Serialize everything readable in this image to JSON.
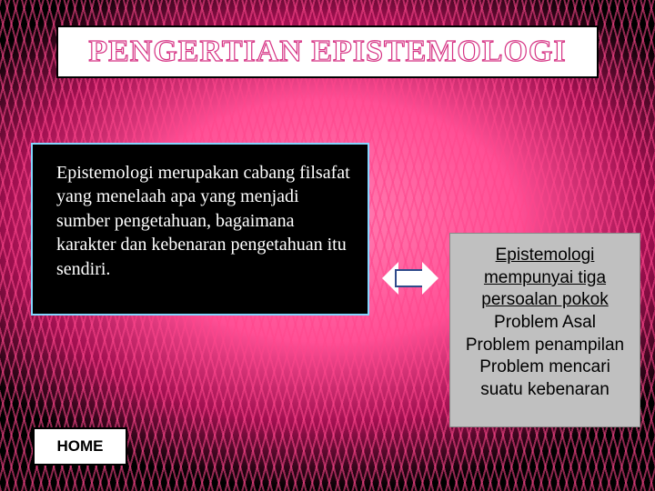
{
  "title": "PENGERTIAN EPISTEMOLOGI",
  "leftPanel": {
    "text": "Epistemologi merupakan cabang filsafat yang menelaah apa yang menjadi sumber pengetahuan, bagaimana karakter dan kebenaran pengetahuan itu sendiri."
  },
  "rightPanel": {
    "l1": "Epistemologi",
    "l2": "mempunyai tiga",
    "l3": "persoalan pokok",
    "l4": "Problem Asal",
    "l5": "Problem penampilan",
    "l6": "Problem mencari",
    "l7": "suatu kebenaran"
  },
  "home": {
    "label": "HOME"
  },
  "colors": {
    "titleStroke": "#d63384",
    "leftBorder": "#85d6ff",
    "rightBg": "#c0c0c0",
    "arrowStroke": "#2e4a8a",
    "bgAccent": "#ff4f95"
  }
}
